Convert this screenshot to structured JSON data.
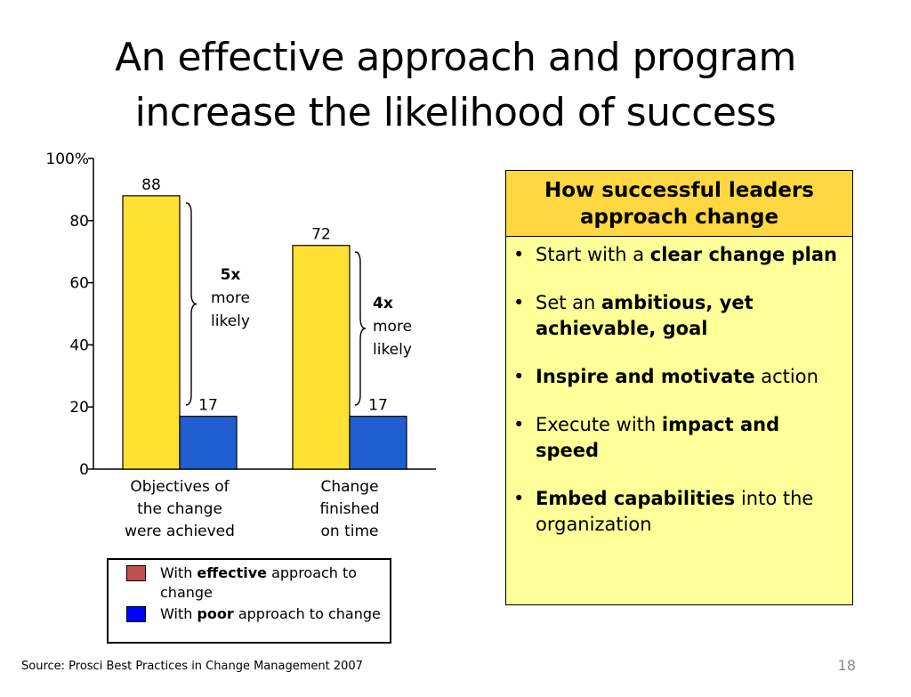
{
  "slide": {
    "title_line1": "An effective approach and program",
    "title_line2": "increase the likelihood of success",
    "source": "Source: Prosci Best Practices in Change Management 2007",
    "page_number": "18"
  },
  "colors": {
    "effective": "#ffe033",
    "poor": "#1f5fd1",
    "legend_effective_swatch": "#c0504d",
    "legend_poor_swatch": "#0000ff",
    "panel_header_bg": "#ffd740",
    "panel_bg": "#ffff99"
  },
  "chart_data": {
    "type": "bar",
    "categories": [
      [
        "Objectives of",
        "the change",
        "were achieved"
      ],
      [
        "Change",
        "finished",
        "on time"
      ]
    ],
    "series": [
      {
        "name": "With effective approach to change",
        "values": [
          88,
          72
        ]
      },
      {
        "name": "With poor approach to change",
        "values": [
          17,
          17
        ]
      }
    ],
    "data_labels": [
      [
        "88",
        "72"
      ],
      [
        "17",
        "17"
      ]
    ],
    "ylim": [
      0,
      100
    ],
    "yticks": [
      0,
      20,
      40,
      60,
      80,
      100
    ],
    "ytick_labels": [
      "0",
      "20",
      "40",
      "60",
      "80",
      "100%"
    ],
    "grid": false,
    "legend_position": "bottom-left",
    "annotations": [
      {
        "bold": "5x",
        "lines": [
          "more",
          "likely"
        ]
      },
      {
        "bold": "4x",
        "lines": [
          "more",
          "likely"
        ]
      }
    ]
  },
  "legend": {
    "items": [
      {
        "prefix": "With ",
        "bold": "effective",
        "suffix": " approach to change"
      },
      {
        "prefix": "With ",
        "bold": "poor",
        "suffix": " approach to change"
      }
    ]
  },
  "panel": {
    "header": "How successful leaders approach change",
    "bullet_symbol": "•",
    "items": [
      {
        "pre": "Start with a ",
        "bold": "clear change plan",
        "post": ""
      },
      {
        "pre": "Set an ",
        "bold": "ambitious, yet achievable, goal",
        "post": ""
      },
      {
        "pre": "",
        "bold": "Inspire and motivate",
        "post": " action"
      },
      {
        "pre": "Execute with ",
        "bold": "impact and speed",
        "post": ""
      },
      {
        "pre": "",
        "bold": "Embed capabilities",
        "post": " into the organization"
      }
    ]
  }
}
